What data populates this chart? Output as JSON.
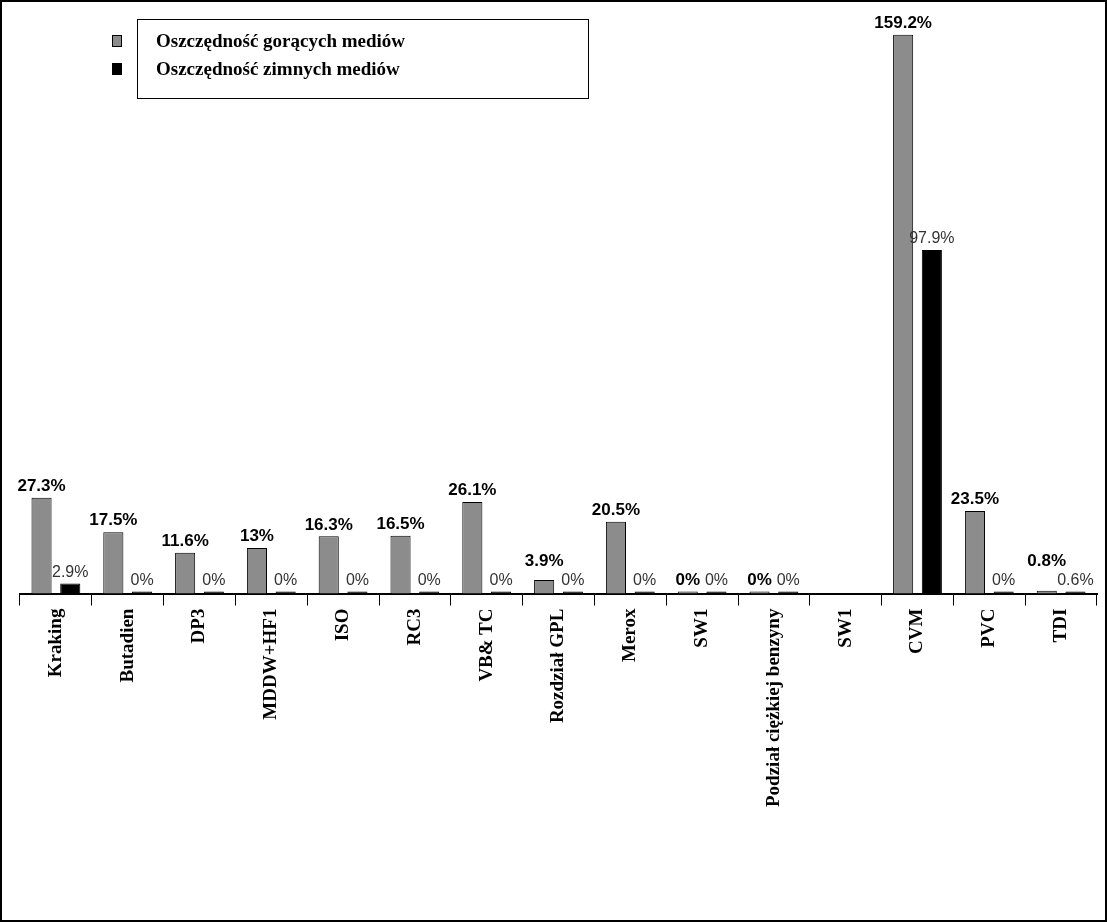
{
  "chart_data": {
    "type": "bar",
    "categories": [
      "Kraking",
      "Butadien",
      "DP3",
      "MDDW+HF1",
      "ISO",
      "RC3",
      "VB& TC",
      "Rozdział GPL",
      "Merox",
      "SW1",
      "Podział ciężkiej benzyny",
      "SW1",
      "CVM",
      "PVC",
      "TDI"
    ],
    "series": [
      {
        "name": "Oszczędność gorących mediów",
        "color": "#8c8c8c",
        "values": [
          27.3,
          17.5,
          11.6,
          13,
          16.3,
          16.5,
          26.1,
          3.9,
          20.5,
          0,
          0,
          null,
          159.2,
          23.5,
          0.8
        ],
        "value_labels": [
          "27.3%",
          "17.5%",
          "11.6%",
          "13%",
          "16.3%",
          "16.5%",
          "26.1%",
          "3.9%",
          "20.5%",
          "0%",
          "0%",
          null,
          "159.2%",
          "23.5%",
          "0.8%"
        ]
      },
      {
        "name": "Oszczędność zimnych mediów",
        "color": "#000000",
        "values": [
          2.9,
          0,
          0,
          0,
          0,
          0,
          0,
          0,
          0,
          0,
          0,
          null,
          97.9,
          0,
          0.6
        ],
        "value_labels": [
          "2.9%",
          "0%",
          "0%",
          "0%",
          "0%",
          "0%",
          "0%",
          "0%",
          "0%",
          "0%",
          "0%",
          null,
          "97.9%",
          "0%",
          "0.6%"
        ]
      }
    ],
    "legend": "top left",
    "grid": false
  }
}
